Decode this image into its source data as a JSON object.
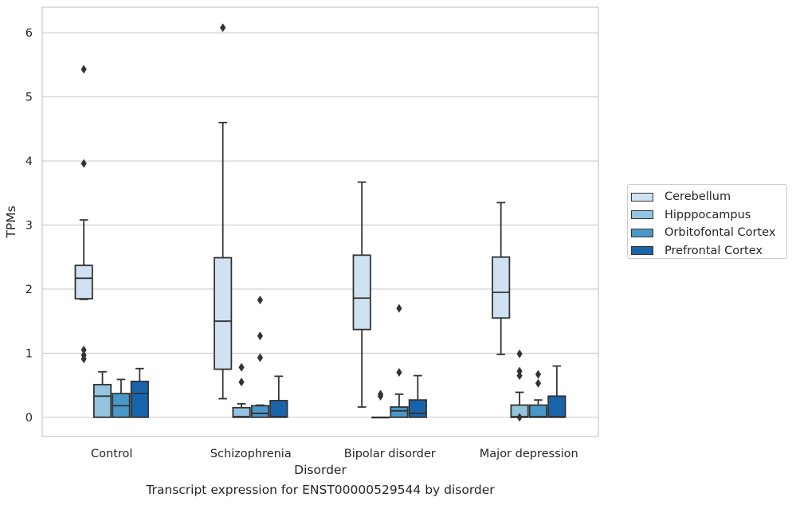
{
  "caption": "Transcript expression for ENST00000529544 by disorder",
  "chart_data": {
    "type": "box",
    "xlabel": "Disorder",
    "ylabel": "TPMs",
    "categories": [
      "Control",
      "Schizophrenia",
      "Bipolar disorder",
      "Major depression"
    ],
    "ylim": [
      -0.3,
      6.4
    ],
    "yticks": [
      0,
      1,
      2,
      3,
      4,
      5,
      6
    ],
    "grid": "horizontal",
    "legend_position": "right",
    "series": [
      {
        "name": "Cerebellum",
        "color": "#d0e1f2",
        "boxes": [
          {
            "whislo": 1.84,
            "q1": 1.85,
            "med": 2.17,
            "q3": 2.37,
            "whishi": 3.08,
            "fliers": [
              0.91,
              0.97,
              1.05,
              3.96,
              5.43
            ]
          },
          {
            "whislo": 0.29,
            "q1": 0.75,
            "med": 1.5,
            "q3": 2.49,
            "whishi": 4.6,
            "fliers": [
              6.08
            ]
          },
          {
            "whislo": 0.16,
            "q1": 1.37,
            "med": 1.86,
            "q3": 2.53,
            "whishi": 3.67,
            "fliers": []
          },
          {
            "whislo": 0.98,
            "q1": 1.55,
            "med": 1.95,
            "q3": 2.5,
            "whishi": 3.35,
            "fliers": []
          }
        ]
      },
      {
        "name": "Hipppocampus",
        "color": "#94c4df",
        "boxes": [
          {
            "whislo": 0,
            "q1": 0,
            "med": 0.33,
            "q3": 0.51,
            "whishi": 0.71,
            "fliers": []
          },
          {
            "whislo": 0,
            "q1": 0,
            "med": 0.01,
            "q3": 0.15,
            "whishi": 0.21,
            "fliers": [
              0.55,
              0.78
            ]
          },
          {
            "whislo": 0,
            "q1": 0,
            "med": 0,
            "q3": 0,
            "whishi": 0,
            "fliers": [
              0.33,
              0.36
            ]
          },
          {
            "whislo": 0,
            "q1": 0,
            "med": 0.01,
            "q3": 0.19,
            "whishi": 0.39,
            "fliers": [
              0.0,
              0.65,
              0.72,
              0.99
            ]
          }
        ]
      },
      {
        "name": "Orbitofontal Cortex",
        "color": "#4a98c9",
        "boxes": [
          {
            "whislo": 0,
            "q1": 0,
            "med": 0.18,
            "q3": 0.37,
            "whishi": 0.59,
            "fliers": []
          },
          {
            "whislo": 0,
            "q1": 0,
            "med": 0.06,
            "q3": 0.18,
            "whishi": 0.19,
            "fliers": [
              0.93,
              1.27,
              1.83
            ]
          },
          {
            "whislo": 0,
            "q1": 0,
            "med": 0.1,
            "q3": 0.16,
            "whishi": 0.36,
            "fliers": [
              0.7,
              1.7
            ]
          },
          {
            "whislo": 0,
            "q1": 0,
            "med": 0.01,
            "q3": 0.19,
            "whishi": 0.27,
            "fliers": [
              0.53,
              0.67
            ]
          }
        ]
      },
      {
        "name": "Prefrontal Cortex",
        "color": "#1764ab",
        "boxes": [
          {
            "whislo": 0,
            "q1": 0,
            "med": 0.37,
            "q3": 0.56,
            "whishi": 0.76,
            "fliers": []
          },
          {
            "whislo": 0,
            "q1": 0,
            "med": 0.01,
            "q3": 0.26,
            "whishi": 0.64,
            "fliers": []
          },
          {
            "whislo": 0,
            "q1": 0,
            "med": 0.06,
            "q3": 0.27,
            "whishi": 0.65,
            "fliers": []
          },
          {
            "whislo": 0,
            "q1": 0,
            "med": 0.01,
            "q3": 0.33,
            "whishi": 0.8,
            "fliers": []
          }
        ]
      }
    ]
  }
}
